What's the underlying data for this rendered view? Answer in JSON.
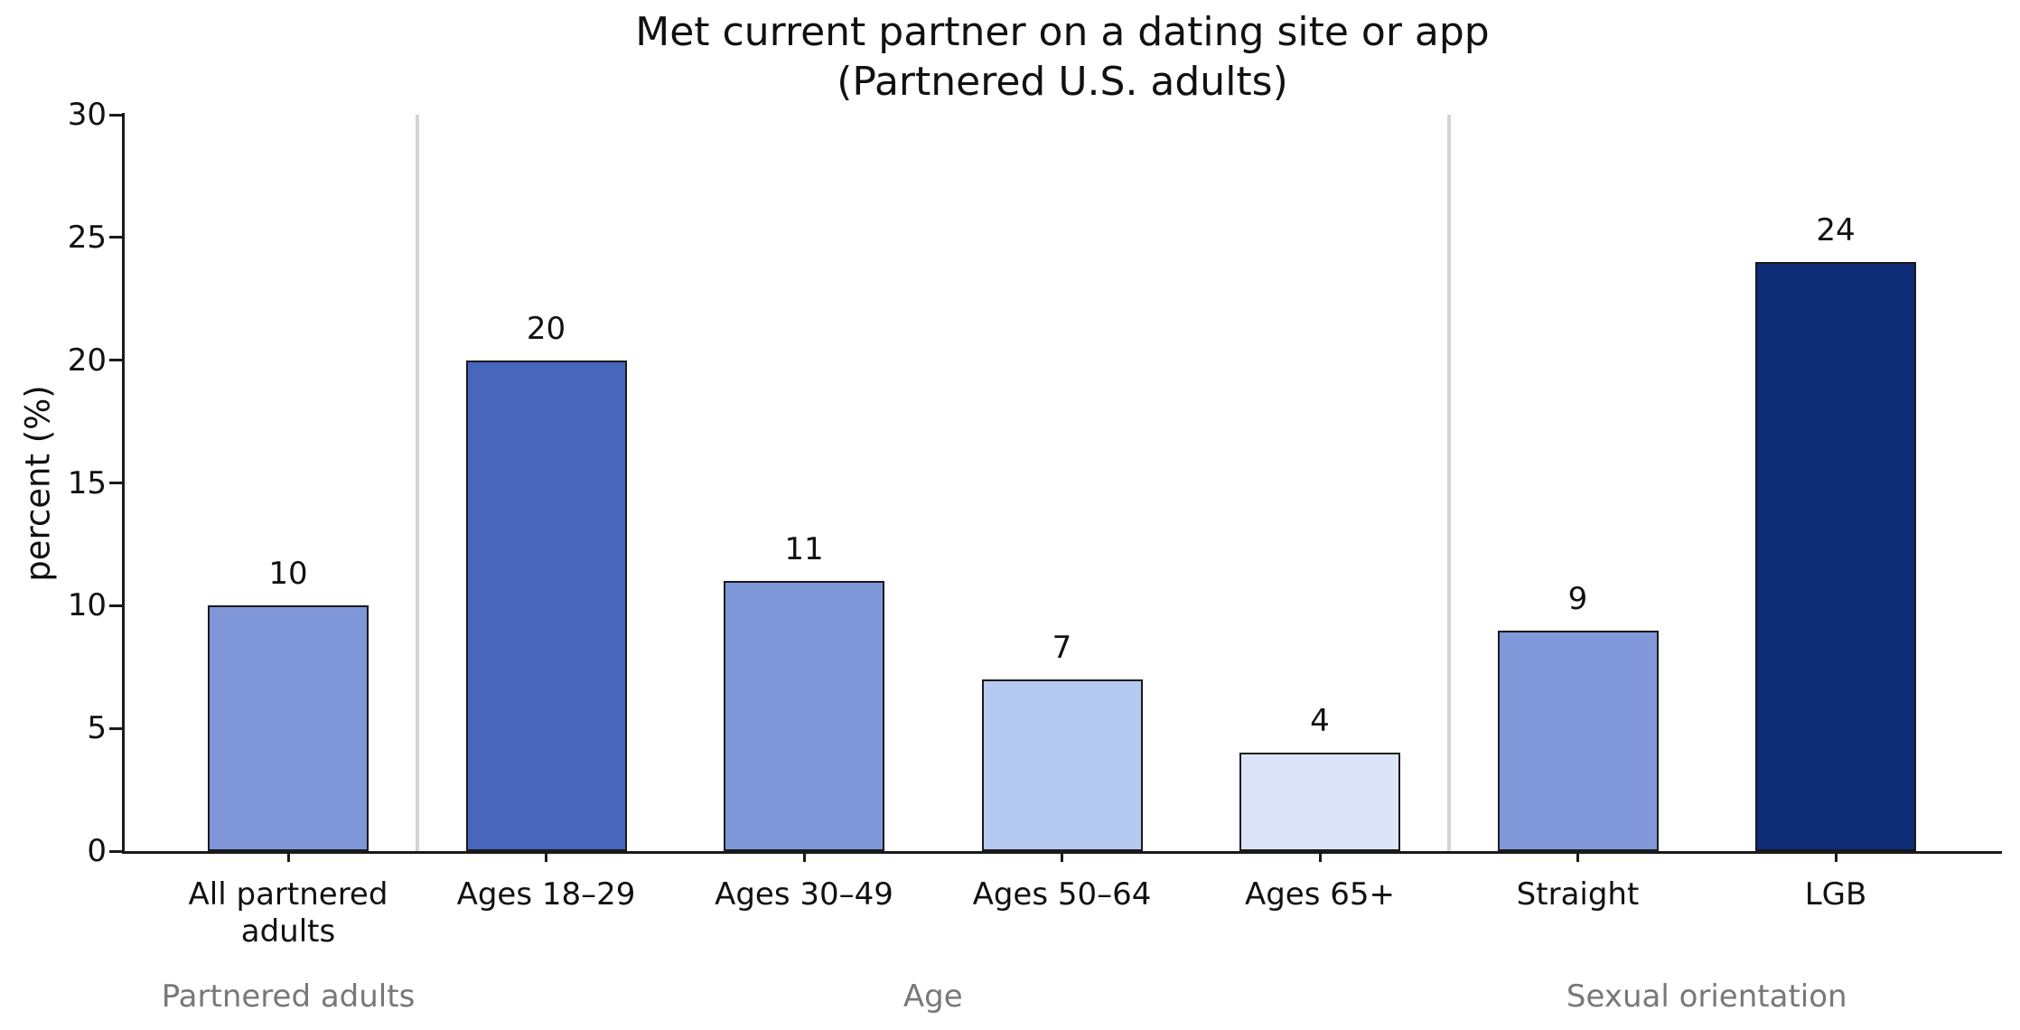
{
  "title": {
    "line1": "Met current partner on a dating site or app",
    "line2": "(Partnered U.S. adults)"
  },
  "chart_data": {
    "type": "bar",
    "title": "Met current partner on a dating site or app (Partnered U.S. adults)",
    "categories": [
      "All partnered adults",
      "Ages 18–29",
      "Ages 30–49",
      "Ages 50–64",
      "Ages 65+",
      "Straight",
      "LGB"
    ],
    "tick_labels": [
      "All partnered\nadults",
      "Ages 18–29",
      "Ages 30–49",
      "Ages 50–64",
      "Ages 65+",
      "Straight",
      "LGB"
    ],
    "values": [
      10,
      20,
      11,
      7,
      4,
      9,
      24
    ],
    "value_labels": [
      "10",
      "20",
      "11",
      "7",
      "4",
      "9",
      "24"
    ],
    "bar_colors": [
      "#7f96d8",
      "#4866bc",
      "#7d97d9",
      "#b6c9f0",
      "#dce4fa",
      "#8198da",
      "#0e2b76"
    ],
    "bar_edge_color": "#1a1a1a",
    "xlabel": "",
    "ylabel": "percent (%)",
    "ylim": [
      0,
      30
    ],
    "yticks": [
      0,
      5,
      10,
      15,
      20,
      25,
      30
    ],
    "grid": false,
    "legend": null,
    "groups": [
      {
        "label": "Partnered adults",
        "indices": [
          0
        ]
      },
      {
        "label": "Age",
        "indices": [
          1,
          2,
          3,
          4
        ]
      },
      {
        "label": "Sexual orientation",
        "indices": [
          5,
          6
        ]
      }
    ],
    "group_dividers_after": [
      0,
      4
    ],
    "divider_color": "#d4d4d4",
    "group_label_color": "#787878"
  }
}
